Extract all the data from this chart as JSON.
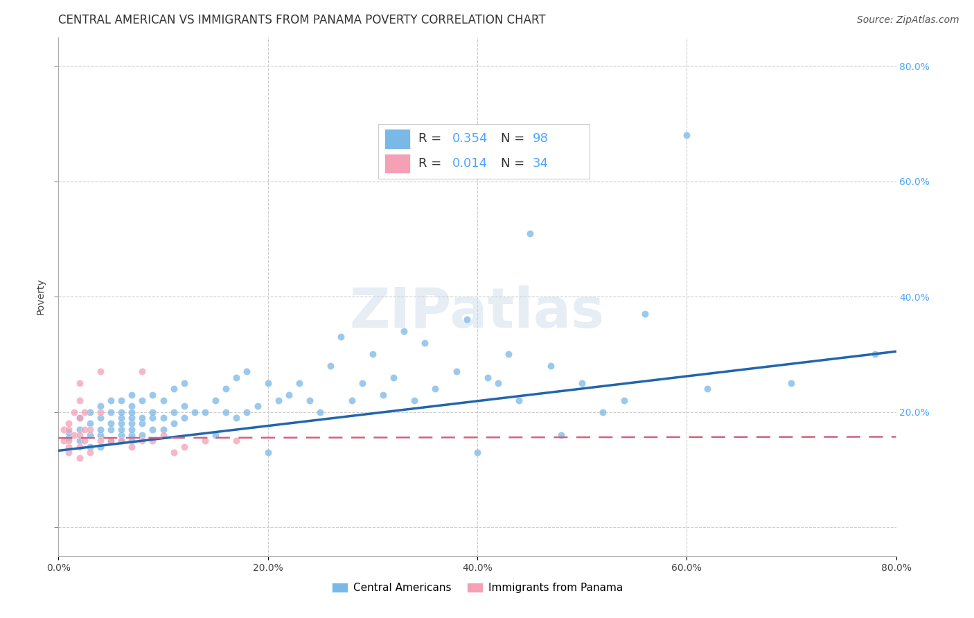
{
  "title": "CENTRAL AMERICAN VS IMMIGRANTS FROM PANAMA POVERTY CORRELATION CHART",
  "source": "Source: ZipAtlas.com",
  "ylabel": "Poverty",
  "xlim": [
    0.0,
    0.8
  ],
  "ylim": [
    -0.05,
    0.85
  ],
  "xticks": [
    0.0,
    0.2,
    0.4,
    0.6,
    0.8
  ],
  "xticklabels": [
    "0.0%",
    "20.0%",
    "40.0%",
    "60.0%",
    "80.0%"
  ],
  "yticks": [
    0.0,
    0.2,
    0.4,
    0.6,
    0.8
  ],
  "yticklabels_right": [
    "",
    "20.0%",
    "40.0%",
    "60.0%",
    "80.0%"
  ],
  "blue_color": "#7ab8e8",
  "pink_color": "#f4a0b5",
  "blue_line_color": "#2166ac",
  "pink_line_color": "#d46080",
  "watermark_text": "ZIPatlas",
  "legend_R1": "R = 0.354",
  "legend_N1": "N = 98",
  "legend_R2": "R = 0.014",
  "legend_N2": "N = 34",
  "label1": "Central Americans",
  "label2": "Immigrants from Panama",
  "blue_scatter_x": [
    0.01,
    0.01,
    0.02,
    0.02,
    0.02,
    0.03,
    0.03,
    0.03,
    0.03,
    0.04,
    0.04,
    0.04,
    0.04,
    0.04,
    0.05,
    0.05,
    0.05,
    0.05,
    0.05,
    0.06,
    0.06,
    0.06,
    0.06,
    0.06,
    0.06,
    0.06,
    0.07,
    0.07,
    0.07,
    0.07,
    0.07,
    0.07,
    0.07,
    0.07,
    0.08,
    0.08,
    0.08,
    0.08,
    0.09,
    0.09,
    0.09,
    0.09,
    0.1,
    0.1,
    0.1,
    0.11,
    0.11,
    0.11,
    0.12,
    0.12,
    0.12,
    0.13,
    0.14,
    0.15,
    0.15,
    0.16,
    0.16,
    0.17,
    0.17,
    0.18,
    0.18,
    0.19,
    0.2,
    0.2,
    0.21,
    0.22,
    0.23,
    0.24,
    0.25,
    0.26,
    0.27,
    0.28,
    0.29,
    0.3,
    0.31,
    0.32,
    0.33,
    0.34,
    0.35,
    0.36,
    0.38,
    0.39,
    0.4,
    0.41,
    0.42,
    0.43,
    0.44,
    0.45,
    0.47,
    0.48,
    0.5,
    0.52,
    0.54,
    0.56,
    0.6,
    0.62,
    0.7,
    0.78
  ],
  "blue_scatter_y": [
    0.155,
    0.165,
    0.15,
    0.17,
    0.19,
    0.14,
    0.16,
    0.18,
    0.2,
    0.14,
    0.16,
    0.17,
    0.19,
    0.21,
    0.15,
    0.17,
    0.18,
    0.2,
    0.22,
    0.15,
    0.16,
    0.17,
    0.18,
    0.19,
    0.2,
    0.22,
    0.15,
    0.16,
    0.17,
    0.18,
    0.19,
    0.2,
    0.21,
    0.23,
    0.16,
    0.18,
    0.19,
    0.22,
    0.17,
    0.19,
    0.2,
    0.23,
    0.17,
    0.19,
    0.22,
    0.18,
    0.2,
    0.24,
    0.19,
    0.21,
    0.25,
    0.2,
    0.2,
    0.16,
    0.22,
    0.2,
    0.24,
    0.19,
    0.26,
    0.2,
    0.27,
    0.21,
    0.13,
    0.25,
    0.22,
    0.23,
    0.25,
    0.22,
    0.2,
    0.28,
    0.33,
    0.22,
    0.25,
    0.3,
    0.23,
    0.26,
    0.34,
    0.22,
    0.32,
    0.24,
    0.27,
    0.36,
    0.13,
    0.26,
    0.25,
    0.3,
    0.22,
    0.51,
    0.28,
    0.16,
    0.25,
    0.2,
    0.22,
    0.37,
    0.68,
    0.24,
    0.25,
    0.3
  ],
  "pink_scatter_x": [
    0.005,
    0.005,
    0.01,
    0.01,
    0.01,
    0.01,
    0.01,
    0.015,
    0.015,
    0.02,
    0.02,
    0.02,
    0.02,
    0.02,
    0.02,
    0.025,
    0.025,
    0.025,
    0.03,
    0.03,
    0.04,
    0.04,
    0.04,
    0.05,
    0.06,
    0.07,
    0.08,
    0.08,
    0.09,
    0.1,
    0.11,
    0.12,
    0.14,
    0.17
  ],
  "pink_scatter_y": [
    0.15,
    0.17,
    0.13,
    0.14,
    0.15,
    0.17,
    0.18,
    0.16,
    0.2,
    0.12,
    0.14,
    0.16,
    0.19,
    0.22,
    0.25,
    0.15,
    0.17,
    0.2,
    0.13,
    0.17,
    0.15,
    0.2,
    0.27,
    0.15,
    0.15,
    0.14,
    0.15,
    0.27,
    0.15,
    0.16,
    0.13,
    0.14,
    0.15,
    0.15
  ],
  "blue_trend_x": [
    0.0,
    0.8
  ],
  "blue_trend_y": [
    0.133,
    0.305
  ],
  "pink_trend_x": [
    0.0,
    0.8
  ],
  "pink_trend_y": [
    0.155,
    0.157
  ],
  "grid_color": "#c8c8c8",
  "background_color": "#ffffff",
  "title_fontsize": 12,
  "axis_label_fontsize": 10,
  "tick_fontsize": 10,
  "source_fontsize": 10,
  "accent_color": "#4da6ff"
}
